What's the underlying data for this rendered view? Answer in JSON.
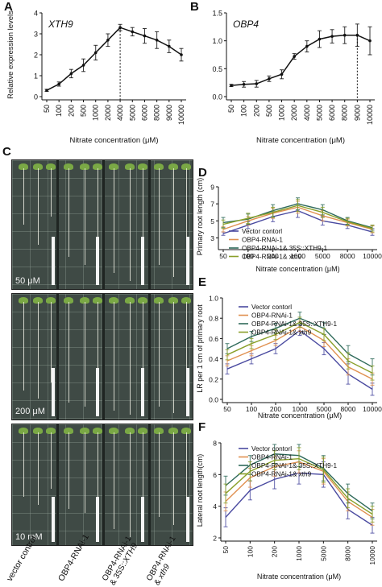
{
  "panels": {
    "A": "A",
    "B": "B",
    "C": "C",
    "D": "D",
    "E": "E",
    "F": "F"
  },
  "nitrate_axis": "Nitrate concentration (μM)",
  "photos": {
    "labels": [
      "50 μM",
      "200 μM",
      "10 mM"
    ],
    "categories": [
      "vector control",
      "OBP4-RNAi-1",
      "OBP4-RNAi-1 & 35S::XTH9",
      "OBP4-RNAi-1 & xth9"
    ]
  },
  "chart_data": [
    {
      "id": "A",
      "type": "line",
      "annotation": "XTH9",
      "ylabel": "Relative expression levels",
      "xlabel": "Nitrate concentration (μM)",
      "categories": [
        "50",
        "100",
        "200",
        "500",
        "1000",
        "2000",
        "4000",
        "5000",
        "6000",
        "8000",
        "9000",
        "10000"
      ],
      "ylim": [
        0,
        4
      ],
      "yticks": [
        0,
        1,
        2,
        3,
        4
      ],
      "values": [
        0.3,
        0.6,
        1.1,
        1.5,
        2.1,
        2.7,
        3.3,
        3.1,
        2.9,
        2.7,
        2.4,
        2.0
      ],
      "errors": [
        0.05,
        0.1,
        0.2,
        0.3,
        0.35,
        0.3,
        0.15,
        0.2,
        0.35,
        0.4,
        0.3,
        0.3
      ],
      "marker_at": "4000",
      "color": "#111111"
    },
    {
      "id": "B",
      "type": "line",
      "annotation": "OBP4",
      "ylabel": "",
      "xlabel": "Nitrate concentration (μM)",
      "categories": [
        "50",
        "100",
        "200",
        "500",
        "1000",
        "2000",
        "4000",
        "5000",
        "6000",
        "8000",
        "9000",
        "10000"
      ],
      "ylim": [
        0,
        1.5
      ],
      "yticks": [
        0.0,
        0.5,
        1.0,
        1.5
      ],
      "values": [
        0.2,
        0.22,
        0.23,
        0.32,
        0.4,
        0.72,
        0.9,
        1.03,
        1.08,
        1.1,
        1.1,
        1.0
      ],
      "errors": [
        0.02,
        0.05,
        0.06,
        0.05,
        0.08,
        0.05,
        0.1,
        0.15,
        0.12,
        0.15,
        0.2,
        0.25
      ],
      "marker_at": "9000",
      "color": "#111111"
    },
    {
      "id": "D",
      "type": "line",
      "ylabel": "Primary root length (cm)",
      "xlabel": "Nitrate concentration (μM)",
      "categories": [
        "50",
        "100",
        "200",
        "1000",
        "5000",
        "8000",
        "10000"
      ],
      "ylim": [
        2,
        9
      ],
      "yticks": [
        3,
        5,
        7,
        9
      ],
      "legend": [
        "Vector contorl",
        "OBP4-RNAi-1",
        "OBP4-RNAi-1& 35S::XTH9-1",
        "OBP4-RNAi-1& xth9"
      ],
      "series": [
        {
          "name": "Vector contorl",
          "color": "#4a4aa0",
          "values": [
            3.5,
            4.5,
            5.5,
            6.2,
            5.0,
            4.5,
            3.7
          ],
          "errors": [
            0.2,
            0.4,
            0.6,
            0.8,
            0.5,
            0.4,
            0.4
          ]
        },
        {
          "name": "OBP4-RNAi-1",
          "color": "#e09050",
          "values": [
            4.0,
            5.0,
            5.9,
            6.6,
            5.6,
            4.8,
            4.0
          ],
          "errors": [
            0.3,
            0.5,
            0.6,
            0.7,
            0.6,
            0.4,
            0.4
          ]
        },
        {
          "name": "OBP4-RNAi-1& 35S::XTH9-1",
          "color": "#2f6a5a",
          "values": [
            4.8,
            5.2,
            6.2,
            7.0,
            6.3,
            5.0,
            4.2
          ],
          "errors": [
            0.6,
            0.6,
            0.7,
            0.7,
            0.6,
            0.4,
            0.3
          ]
        },
        {
          "name": "OBP4-RNAi-1& xth9",
          "color": "#8aa02a",
          "values": [
            4.6,
            5.3,
            6.0,
            6.8,
            6.0,
            4.9,
            4.1
          ],
          "errors": [
            0.5,
            0.6,
            0.6,
            0.7,
            0.6,
            0.4,
            0.4
          ]
        }
      ]
    },
    {
      "id": "E",
      "type": "line",
      "ylabel": "LR per 1 cm of primary root",
      "xlabel": "Nitrate concentration (μM)",
      "categories": [
        "50",
        "100",
        "200",
        "1000",
        "5000",
        "8000",
        "10000"
      ],
      "ylim": [
        0,
        1.0
      ],
      "yticks": [
        0.0,
        0.2,
        0.4,
        0.6,
        0.8,
        1.0
      ],
      "legend": [
        "Vector contorl",
        "OBP4-RNAi-1",
        "OBP4-RNAi-1& 35S::XTH9-1",
        "OBP4-RNAi-1& xth9"
      ],
      "series": [
        {
          "name": "Vector contorl",
          "color": "#4a4aa0",
          "values": [
            0.3,
            0.4,
            0.5,
            0.68,
            0.5,
            0.25,
            0.1
          ],
          "errors": [
            0.05,
            0.05,
            0.05,
            0.05,
            0.06,
            0.1,
            0.06
          ]
        },
        {
          "name": "OBP4-RNAi-1",
          "color": "#e09050",
          "values": [
            0.38,
            0.48,
            0.58,
            0.72,
            0.58,
            0.32,
            0.2
          ],
          "errors": [
            0.05,
            0.05,
            0.05,
            0.05,
            0.06,
            0.08,
            0.06
          ]
        },
        {
          "name": "OBP4-RNAi-1& 35S::XTH9-1",
          "color": "#2f6a5a",
          "values": [
            0.5,
            0.62,
            0.7,
            0.8,
            0.7,
            0.45,
            0.32
          ],
          "errors": [
            0.05,
            0.05,
            0.05,
            0.06,
            0.06,
            0.08,
            0.08
          ]
        },
        {
          "name": "OBP4-RNAi-1& xth9",
          "color": "#8aa02a",
          "values": [
            0.44,
            0.55,
            0.64,
            0.76,
            0.64,
            0.38,
            0.26
          ],
          "errors": [
            0.05,
            0.05,
            0.05,
            0.05,
            0.06,
            0.08,
            0.07
          ]
        }
      ]
    },
    {
      "id": "F",
      "type": "line",
      "ylabel": "Lateral root length(cm)",
      "xlabel": "Nitrate concentration (μM)",
      "categories": [
        "50",
        "100",
        "200",
        "1000",
        "5000",
        "8000",
        "10000"
      ],
      "ylim": [
        2,
        8
      ],
      "yticks": [
        2,
        4,
        6,
        8
      ],
      "legend": [
        "Vector contorl",
        "OBP4-RNAi-1",
        "OBP4-RNAi-1& 35S::XTH9-1",
        "OBP4-RNAi-1& xth9"
      ],
      "series": [
        {
          "name": "Vector contorl",
          "color": "#4a4aa0",
          "values": [
            3.3,
            5.0,
            5.7,
            6.1,
            6.0,
            3.8,
            2.8
          ],
          "errors": [
            0.6,
            0.6,
            0.6,
            0.7,
            0.8,
            0.6,
            0.5
          ]
        },
        {
          "name": "OBP4-RNAi-1",
          "color": "#e09050",
          "values": [
            4.3,
            5.8,
            6.5,
            6.8,
            6.2,
            4.3,
            3.3
          ],
          "errors": [
            0.6,
            0.6,
            0.6,
            0.7,
            0.8,
            0.6,
            0.5
          ]
        },
        {
          "name": "OBP4-RNAi-1& 35S::XTH9-1",
          "color": "#2f6a5a",
          "values": [
            5.3,
            6.6,
            7.3,
            7.2,
            6.4,
            4.8,
            3.7
          ],
          "errors": [
            0.6,
            0.6,
            0.6,
            0.7,
            0.8,
            0.6,
            0.5
          ]
        },
        {
          "name": "OBP4-RNAi-1& xth9",
          "color": "#8aa02a",
          "values": [
            4.8,
            6.2,
            6.9,
            7.0,
            6.3,
            4.5,
            3.5
          ],
          "errors": [
            0.6,
            0.6,
            0.6,
            0.7,
            0.8,
            0.6,
            0.5
          ]
        }
      ]
    }
  ]
}
